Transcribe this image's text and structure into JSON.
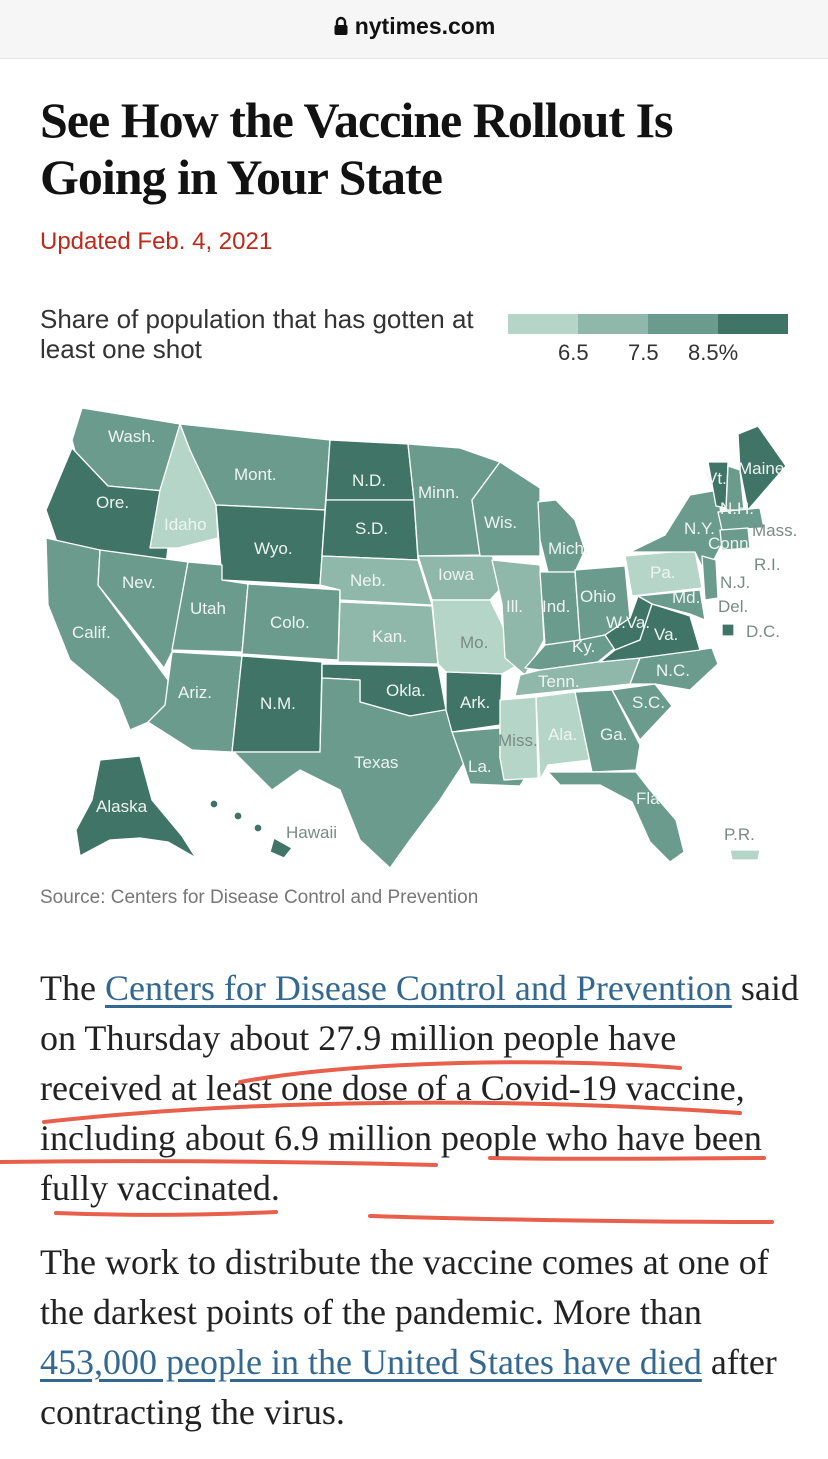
{
  "browser": {
    "url": "nytimes.com",
    "lock_icon": "lock-icon"
  },
  "article": {
    "headline": "See How the Vaccine Rollout Is Going in Your State",
    "updated": "Updated Feb. 4, 2021"
  },
  "map": {
    "legend_title": "Share of population that has gotten at least one shot",
    "legend_colors": [
      "#b5d5c9",
      "#8fb8aa",
      "#6a9b8c",
      "#3f7466"
    ],
    "legend_ticks": [
      "6.5",
      "7.5",
      "8.5%"
    ],
    "state_labels": [
      "Wash.",
      "Ore.",
      "Idaho",
      "Mont.",
      "Wyo.",
      "N.D.",
      "S.D.",
      "Minn.",
      "Wis.",
      "Mich.",
      "Maine",
      "Vt.",
      "N.H.",
      "Mass.",
      "N.Y.",
      "Conn.",
      "R.I.",
      "N.J.",
      "Del.",
      "D.C.",
      "Pa.",
      "Ohio",
      "Md.",
      "W.Va.",
      "Va.",
      "Ind.",
      "Ill.",
      "Iowa",
      "Neb.",
      "Nev.",
      "Utah",
      "Colo.",
      "Kan.",
      "Mo.",
      "Ky.",
      "Calif.",
      "Ariz.",
      "N.M.",
      "Okla.",
      "Ark.",
      "Tenn.",
      "N.C.",
      "S.C.",
      "Ga.",
      "Ala.",
      "Miss.",
      "La.",
      "Texas",
      "Fla.",
      "Alaska",
      "Hawaii",
      "P.R."
    ],
    "source": "Source: Centers for Disease Control and Prevention"
  },
  "body": {
    "p1_pre": "The ",
    "p1_link": "Centers for Disease Control and Prevention",
    "p1_post": " said on Thursday about 27.9 million people have received at least one dose of a Covid-19 vaccine, including about 6.9 million people who have been fully vaccinated.",
    "p2_pre": "The work to distribute the vaccine comes at one of the darkest points of the pandemic. More than ",
    "p2_link": "453,000 people in the United States have died",
    "p2_post": " after contracting the virus."
  },
  "annotation_color": "#e8604c"
}
